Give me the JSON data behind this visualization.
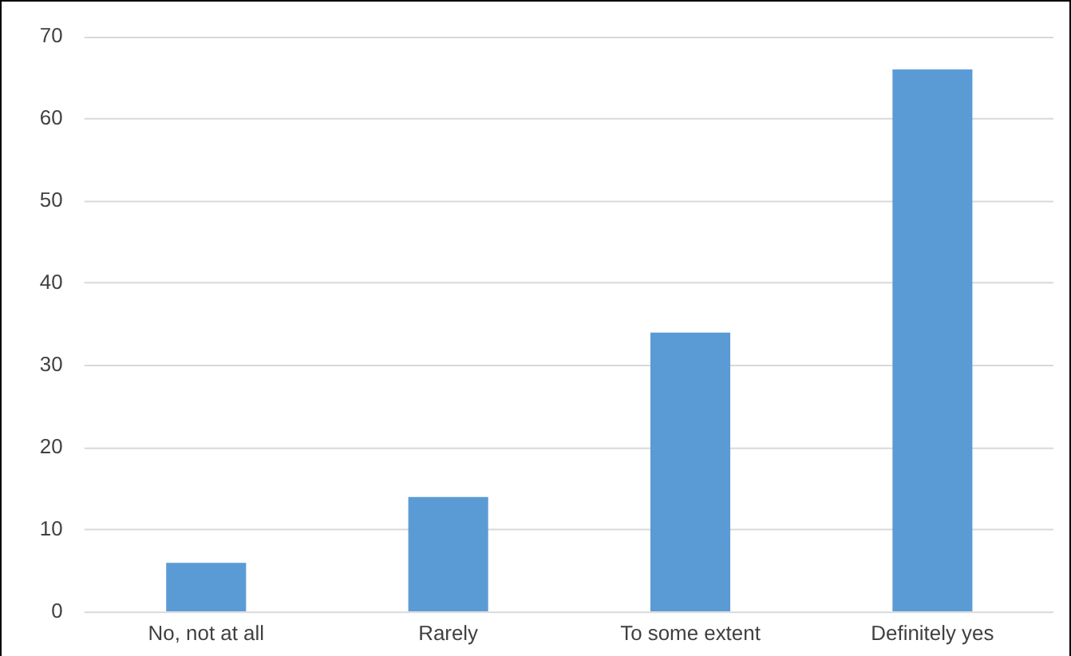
{
  "chart_data": {
    "type": "bar",
    "categories": [
      "No, not at all",
      "Rarely",
      "To some extent",
      "Definitely yes"
    ],
    "values": [
      6,
      14,
      34,
      66
    ],
    "color": "#5b9bd5",
    "ylim": [
      0,
      70
    ],
    "yticks": [
      0,
      10,
      20,
      30,
      40,
      50,
      60,
      70
    ],
    "grid": "y"
  }
}
